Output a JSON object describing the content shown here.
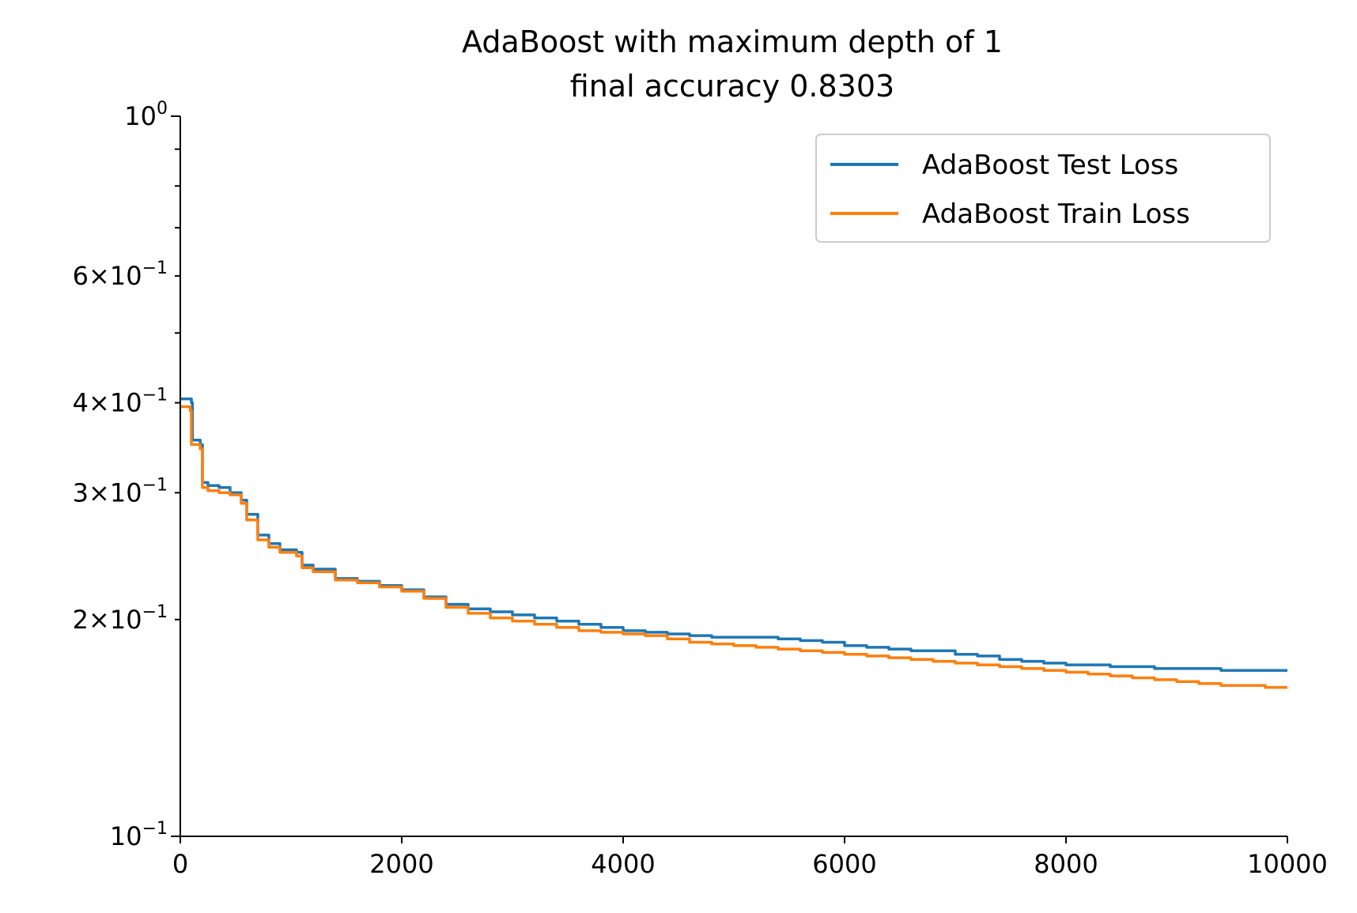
{
  "chart_data": {
    "type": "line",
    "title": "AdaBoost with maximum depth of 1",
    "subtitle": "final accuracy 0.8303",
    "xlabel": "",
    "ylabel": "",
    "yscale": "log",
    "xlim": [
      0,
      10000
    ],
    "ylim": [
      0.1,
      1.0
    ],
    "grid": false,
    "legend_position": "top-right",
    "x_ticks": [
      {
        "value": 0,
        "label": "0"
      },
      {
        "value": 2000,
        "label": "2000"
      },
      {
        "value": 4000,
        "label": "4000"
      },
      {
        "value": 6000,
        "label": "6000"
      },
      {
        "value": 8000,
        "label": "8000"
      },
      {
        "value": 10000,
        "label": "10000"
      }
    ],
    "y_major_ticks": [
      {
        "value": 1.0,
        "mantissa": "",
        "base": "10",
        "exp": "0"
      },
      {
        "value": 0.1,
        "mantissa": "",
        "base": "10",
        "exp": "−1"
      }
    ],
    "y_minor_ticks": [
      {
        "value": 0.6,
        "mantissa": "6",
        "base": "10",
        "exp": "−1"
      },
      {
        "value": 0.4,
        "mantissa": "4",
        "base": "10",
        "exp": "−1"
      },
      {
        "value": 0.3,
        "mantissa": "3",
        "base": "10",
        "exp": "−1"
      },
      {
        "value": 0.2,
        "mantissa": "2",
        "base": "10",
        "exp": "−1"
      }
    ],
    "y_unlabeled_minor_ticks": [
      0.9,
      0.8,
      0.7,
      0.5
    ],
    "series": [
      {
        "name": "AdaBoost Test Loss",
        "color": "#1f77b4",
        "x": [
          0,
          100,
          110,
          180,
          200,
          250,
          350,
          450,
          550,
          600,
          700,
          800,
          900,
          1050,
          1100,
          1200,
          1400,
          1600,
          1800,
          2000,
          2200,
          2400,
          2600,
          2800,
          3000,
          3200,
          3400,
          3600,
          3800,
          4000,
          4200,
          4400,
          4600,
          4800,
          5000,
          5200,
          5400,
          5600,
          5800,
          6000,
          6200,
          6400,
          6600,
          6800,
          7000,
          7200,
          7400,
          7600,
          7800,
          8000,
          8200,
          8400,
          8600,
          8800,
          9000,
          9200,
          9400,
          9600,
          9800,
          10000
        ],
        "values": [
          0.405,
          0.4,
          0.355,
          0.35,
          0.31,
          0.307,
          0.305,
          0.3,
          0.293,
          0.28,
          0.262,
          0.255,
          0.25,
          0.248,
          0.238,
          0.235,
          0.228,
          0.226,
          0.223,
          0.22,
          0.215,
          0.21,
          0.207,
          0.205,
          0.203,
          0.201,
          0.199,
          0.197,
          0.195,
          0.193,
          0.192,
          0.191,
          0.19,
          0.189,
          0.189,
          0.189,
          0.188,
          0.187,
          0.186,
          0.184,
          0.183,
          0.182,
          0.181,
          0.181,
          0.179,
          0.178,
          0.176,
          0.175,
          0.174,
          0.173,
          0.173,
          0.172,
          0.172,
          0.171,
          0.171,
          0.171,
          0.17,
          0.17,
          0.17,
          0.17
        ]
      },
      {
        "name": "AdaBoost Train Loss",
        "color": "#ff7f0e",
        "x": [
          0,
          90,
          100,
          180,
          200,
          250,
          350,
          450,
          550,
          600,
          700,
          800,
          900,
          1050,
          1100,
          1200,
          1400,
          1600,
          1800,
          2000,
          2200,
          2400,
          2600,
          2800,
          3000,
          3200,
          3400,
          3600,
          3800,
          4000,
          4200,
          4400,
          4600,
          4800,
          5000,
          5200,
          5400,
          5600,
          5800,
          6000,
          6200,
          6400,
          6600,
          6800,
          7000,
          7200,
          7400,
          7600,
          7800,
          8000,
          8200,
          8400,
          8600,
          8800,
          9000,
          9200,
          9400,
          9600,
          9800,
          10000
        ],
        "values": [
          0.395,
          0.39,
          0.35,
          0.345,
          0.305,
          0.302,
          0.3,
          0.298,
          0.29,
          0.275,
          0.258,
          0.252,
          0.248,
          0.245,
          0.236,
          0.233,
          0.227,
          0.225,
          0.222,
          0.219,
          0.214,
          0.208,
          0.204,
          0.201,
          0.199,
          0.197,
          0.195,
          0.193,
          0.192,
          0.191,
          0.19,
          0.188,
          0.186,
          0.185,
          0.184,
          0.183,
          0.182,
          0.181,
          0.18,
          0.179,
          0.178,
          0.177,
          0.176,
          0.175,
          0.174,
          0.173,
          0.172,
          0.171,
          0.17,
          0.169,
          0.168,
          0.167,
          0.166,
          0.165,
          0.164,
          0.163,
          0.162,
          0.162,
          0.161,
          0.161
        ]
      }
    ]
  }
}
